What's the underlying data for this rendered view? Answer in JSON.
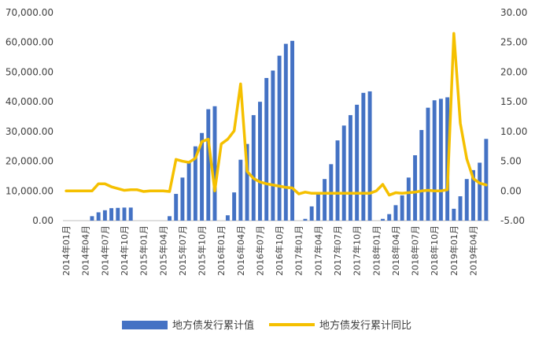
{
  "chart_data": {
    "type": "bar",
    "title": "",
    "xlabel": "",
    "ylabel": "",
    "ylim": [
      0,
      70000
    ],
    "y2lim": [
      -5,
      30
    ],
    "y_ticks": [
      "0.00",
      "10,000.00",
      "20,000.00",
      "30,000.00",
      "40,000.00",
      "50,000.00",
      "60,000.00",
      "70,000.00"
    ],
    "y2_ticks": [
      "-5.00",
      "0.00",
      "5.00",
      "10.00",
      "15.00",
      "20.00",
      "25.00",
      "30.00"
    ],
    "grid": false,
    "legend_position": "bottom",
    "x_tick_labels": [
      "2014年01月",
      "2014年04月",
      "2014年07月",
      "2014年10月",
      "2015年01月",
      "2015年04月",
      "2015年07月",
      "2015年10月",
      "2016年01月",
      "2016年04月",
      "2016年07月",
      "2016年10月",
      "2017年01月",
      "2017年04月",
      "2017年07月",
      "2017年10月",
      "2018年01月",
      "2018年04月",
      "2018年07月",
      "2018年10月",
      "2019年01月",
      "2019年04月"
    ],
    "x_tick_step": 3,
    "categories": [
      "2014-01",
      "2014-02",
      "2014-03",
      "2014-04",
      "2014-05",
      "2014-06",
      "2014-07",
      "2014-08",
      "2014-09",
      "2014-10",
      "2014-11",
      "2014-12",
      "2015-01",
      "2015-02",
      "2015-03",
      "2015-04",
      "2015-05",
      "2015-06",
      "2015-07",
      "2015-08",
      "2015-09",
      "2015-10",
      "2015-11",
      "2015-12",
      "2016-01",
      "2016-02",
      "2016-03",
      "2016-04",
      "2016-05",
      "2016-06",
      "2016-07",
      "2016-08",
      "2016-09",
      "2016-10",
      "2016-11",
      "2016-12",
      "2017-01",
      "2017-02",
      "2017-03",
      "2017-04",
      "2017-05",
      "2017-06",
      "2017-07",
      "2017-08",
      "2017-09",
      "2017-10",
      "2017-11",
      "2017-12",
      "2018-01",
      "2018-02",
      "2018-03",
      "2018-04",
      "2018-05",
      "2018-06",
      "2018-07",
      "2018-08",
      "2018-09",
      "2018-10",
      "2018-11",
      "2018-12",
      "2019-01",
      "2019-02",
      "2019-03",
      "2019-04",
      "2019-05",
      "2019-06"
    ],
    "series": [
      {
        "name": "地方债发行累计值",
        "type": "bar",
        "axis": "left",
        "color": "#4472C4",
        "values": [
          0,
          0,
          0,
          0,
          1500,
          2800,
          3500,
          4200,
          4300,
          4400,
          4400,
          0,
          0,
          0,
          0,
          0,
          1500,
          9000,
          14500,
          20000,
          25000,
          29500,
          37500,
          38500,
          0,
          1800,
          9500,
          20500,
          25800,
          35500,
          40000,
          48000,
          50500,
          55500,
          59500,
          60500,
          0,
          600,
          4800,
          9000,
          14000,
          19000,
          27000,
          32000,
          35500,
          39000,
          43000,
          43500,
          0,
          600,
          2200,
          5200,
          8500,
          14500,
          22000,
          30500,
          38000,
          40500,
          41000,
          41500,
          4000,
          8200,
          14000,
          17000,
          19500,
          27500
        ]
      },
      {
        "name": "地方债发行累计同比",
        "type": "line",
        "axis": "right",
        "color": "#F5C000",
        "values": [
          0,
          0,
          0,
          0,
          0,
          1.2,
          1.2,
          0.7,
          0.4,
          0.1,
          0.2,
          0.2,
          -0.1,
          0,
          0,
          0,
          -0.1,
          5.3,
          5.0,
          4.8,
          5.5,
          8.3,
          8.7,
          0,
          7.9,
          8.7,
          10.1,
          18.0,
          3.3,
          2.1,
          1.5,
          1.2,
          1.0,
          0.8,
          0.6,
          0.5,
          -0.5,
          -0.2,
          -0.4,
          -0.4,
          -0.4,
          -0.4,
          -0.4,
          -0.4,
          -0.4,
          -0.4,
          -0.4,
          -0.4,
          0,
          1.1,
          -0.7,
          -0.3,
          -0.4,
          -0.3,
          -0.2,
          0,
          0.1,
          0,
          0,
          0.2,
          26.5,
          11.4,
          5.4,
          2.1,
          1.3,
          1.0
        ]
      }
    ]
  }
}
